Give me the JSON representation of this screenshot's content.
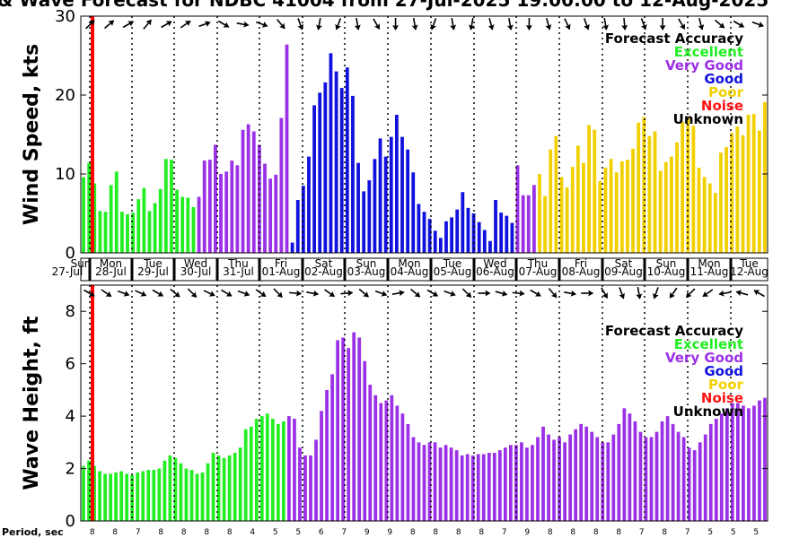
{
  "title": "& Wave Forecast for NDBC 41004 from 27-Jul-2025 19:00:00 to 12-Aug-2025",
  "colors": {
    "Excellent": "#22ee22",
    "Very Good": "#9b30e6",
    "Good": "#1111dd",
    "Poor": "#f2d000",
    "Noise": "#ff1111",
    "Unknown": "#000000",
    "now_line": "#ff0000"
  },
  "legend": {
    "title": "Forecast Accuracy",
    "entries": [
      "Excellent",
      "Very Good",
      "Good",
      "Poor",
      "Noise",
      "Unknown"
    ]
  },
  "days": [
    {
      "dow": "Sun",
      "date": "27-Jul"
    },
    {
      "dow": "Mon",
      "date": "28-Jul"
    },
    {
      "dow": "Tue",
      "date": "29-Jul"
    },
    {
      "dow": "Wed",
      "date": "30-Jul"
    },
    {
      "dow": "Thu",
      "date": "31-Jul"
    },
    {
      "dow": "Fri",
      "date": "01-Aug"
    },
    {
      "dow": "Sat",
      "date": "02-Aug"
    },
    {
      "dow": "Sun",
      "date": "03-Aug"
    },
    {
      "dow": "Mon",
      "date": "04-Aug"
    },
    {
      "dow": "Tue",
      "date": "05-Aug"
    },
    {
      "dow": "Wed",
      "date": "06-Aug"
    },
    {
      "dow": "Thu",
      "date": "07-Aug"
    },
    {
      "dow": "Fri",
      "date": "08-Aug"
    },
    {
      "dow": "Sat",
      "date": "09-Aug"
    },
    {
      "dow": "Sun",
      "date": "10-Aug"
    },
    {
      "dow": "Mon",
      "date": "11-Aug"
    },
    {
      "dow": "Tue",
      "date": "12-Aug"
    }
  ],
  "period_label": "Period, sec",
  "periods": [
    8,
    8,
    7,
    8,
    8,
    8,
    8,
    4,
    5,
    5,
    6,
    7,
    9,
    9,
    8,
    8,
    8,
    8,
    7,
    9,
    8,
    8,
    8,
    8,
    7,
    8,
    7,
    5,
    5,
    5
  ],
  "chart_data": [
    {
      "type": "bar",
      "title": "& Wave Forecast for NDBC 41004 from 27-Jul-2025 19:00:00 to 12-Aug-2025",
      "ylabel": "Wind Speed, kts",
      "ylim": [
        0,
        30
      ],
      "yticks": [
        0,
        10,
        20,
        30
      ],
      "grid": false,
      "legend_position": "top-right",
      "arrow_directions_deg": [
        45,
        50,
        60,
        40,
        60,
        55,
        70,
        120,
        100,
        110,
        140,
        160,
        190,
        200,
        170,
        150,
        180,
        170,
        200,
        170,
        190,
        165,
        170,
        180,
        165,
        155,
        160,
        170,
        175,
        160,
        180,
        150,
        165,
        130,
        120,
        110
      ],
      "segments": [
        {
          "accuracy": "Excellent",
          "values": [
            9.6,
            11.4,
            8.8,
            5.3,
            5.2,
            8.6,
            10.3,
            5.2,
            4.9,
            5.1,
            6.8,
            8.2,
            5.3,
            6.3,
            8.1,
            11.9,
            11.8,
            8.0,
            7.1,
            7.0,
            5.8
          ]
        },
        {
          "accuracy": "Very Good",
          "values": [
            7.1,
            11.7,
            11.8,
            13.7,
            10.0,
            10.3,
            11.7,
            11.1,
            15.6,
            16.3,
            15.4,
            13.7,
            11.3,
            9.4,
            9.9,
            17.1,
            26.4
          ]
        },
        {
          "accuracy": "Good",
          "values": [
            1.3,
            6.7,
            8.5,
            12.2,
            18.7,
            20.3,
            21.6,
            25.3,
            23.0,
            20.9,
            23.5,
            19.9,
            11.4,
            7.8,
            9.2,
            11.9,
            14.5,
            12.2,
            14.7,
            17.5,
            14.7,
            13.1,
            10.2,
            6.2,
            5.2,
            4.3,
            2.8,
            1.9,
            4.0,
            4.5,
            5.5,
            7.7,
            5.7,
            5.0,
            3.9,
            2.9,
            1.5,
            6.7,
            5.1,
            4.7,
            3.8
          ]
        },
        {
          "accuracy": "Very Good",
          "values": [
            11.1,
            7.3,
            7.3,
            8.6
          ]
        },
        {
          "accuracy": "Poor",
          "values": [
            10.0,
            7.2,
            13.1,
            14.8,
            9.6,
            8.3,
            10.9,
            13.6,
            11.4,
            16.2,
            15.6,
            9.1,
            10.8,
            11.9,
            10.2,
            11.6,
            11.8,
            13.2,
            16.5,
            17.2,
            14.8,
            15.4,
            10.4,
            11.5,
            12.2,
            14.0,
            16.6,
            17.2,
            16.1,
            10.8,
            9.6,
            8.8,
            7.6,
            12.7,
            13.4,
            15.2,
            16.0,
            14.9,
            17.5,
            17.6,
            15.5,
            19.1
          ]
        }
      ]
    },
    {
      "type": "bar",
      "ylabel": "Wave Height, ft",
      "ylim": [
        0,
        9
      ],
      "yticks": [
        0,
        2,
        4,
        6,
        8
      ],
      "grid": false,
      "legend_position": "top-right",
      "arrow_directions_deg": [
        120,
        125,
        110,
        115,
        120,
        130,
        135,
        115,
        120,
        110,
        125,
        135,
        95,
        100,
        125,
        85,
        130,
        110,
        80,
        130,
        120,
        110,
        135,
        90,
        105,
        95,
        120,
        140,
        100,
        90,
        150,
        160,
        170,
        200,
        215,
        225,
        235,
        260,
        285,
        300
      ],
      "segments": [
        {
          "accuracy": "Excellent",
          "values": [
            2.1,
            2.3,
            2.1,
            1.9,
            1.8,
            1.8,
            1.85,
            1.9,
            1.8,
            1.75,
            1.85,
            1.9,
            1.95,
            1.95,
            2.0,
            2.3,
            2.5,
            2.4,
            2.2,
            2.0,
            1.95,
            1.8,
            1.85,
            2.2,
            2.6,
            2.5,
            2.4,
            2.5,
            2.6,
            2.8,
            3.5,
            3.6,
            3.9,
            4.0,
            4.1,
            3.9,
            3.7,
            3.8
          ]
        },
        {
          "accuracy": "Very Good",
          "values": [
            4.0,
            3.9,
            2.8,
            2.5,
            2.5,
            3.1,
            4.2,
            5.0,
            5.6,
            6.9,
            7.0,
            6.6,
            7.2,
            7.0,
            6.1,
            5.2,
            4.8,
            4.5,
            4.6,
            4.8,
            4.4,
            4.1,
            3.7,
            3.2,
            3.0,
            2.9,
            3.0,
            3.0,
            2.8,
            2.9,
            2.8,
            2.7,
            2.5,
            2.55,
            2.5,
            2.55,
            2.55,
            2.6,
            2.6,
            2.7,
            2.8,
            2.9,
            2.9,
            3.0,
            2.8,
            2.9,
            3.2,
            3.6,
            3.3,
            3.1,
            3.2,
            3.0,
            3.3,
            3.5,
            3.7,
            3.6,
            3.4,
            3.2,
            3.0,
            3.0,
            3.3,
            3.7,
            4.3,
            4.1,
            3.8,
            3.4,
            3.2,
            3.2,
            3.4,
            3.8,
            4.0,
            3.7,
            3.4,
            3.2,
            2.8,
            2.7,
            3.0,
            3.3,
            3.7,
            3.9,
            4.1,
            4.3,
            4.5,
            4.5,
            4.4,
            4.3,
            4.4,
            4.6,
            4.7
          ]
        }
      ]
    }
  ]
}
